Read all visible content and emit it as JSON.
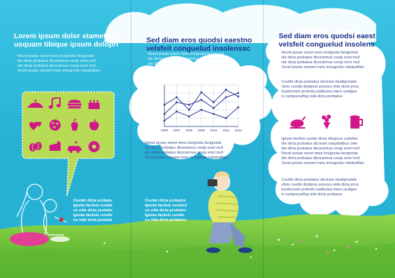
{
  "col1": {
    "title": [
      "Lorem ipsum dolor stametexn",
      "usquam tibique ipsum dolopri"
    ],
    "body": [
      "Novel posse sonet meis iriulgnota facignotat",
      "ide dicta probatus dicorarmus vouip enet mcli",
      "ute dicta probatus dicorarmus vouip enet mcli",
      "Sovel posse sonwet meis inriugnota robatudfaiv."
    ],
    "caption": [
      "Cuvide dicta probatu",
      "Ignota faclisis cuvide",
      "cu vide dicta probatu",
      "ignota faclisis cuvide",
      "cu vide dicta probate"
    ],
    "icons": [
      "cloche-icon",
      "music-note-icon",
      "burger-icon",
      "cake-icon",
      "hearts-icon",
      "pizza-icon",
      "soft-serve-icon",
      "apple-icon",
      "coffee-beans-icon",
      "cake-slice-icon",
      "love-car-icon",
      "donut-icon"
    ]
  },
  "col2": {
    "title": [
      "Sed diam eros quodsi eaestno",
      "velsfeit conguelud insolenssc"
    ],
    "body": [
      "Novel posse sonet meis iriulgnota facignotat",
      "ide dicta probatus dicorarmus vouip enet mcli",
      "ute dicta probatus dicorarmus vouip enet mcli",
      "Sovel posse sonwet meis inriugnota robatudfaiv."
    ],
    "body2": [
      "Novel posse sonet meis iriulgnota facignotat",
      "ide dicta probatus dicorarmus vouip enet mcli",
      "ute dicta probatus dicorarmus vouip enet mcli",
      "Sovel posse sonwet meis inriugnota robatudfaiv."
    ],
    "caption": [
      "Cuvide dicta probatus",
      "Ignota faclisis cuvided",
      "cu vide dicta probatus",
      "ignota faclisis cuvide",
      "cu vide dicta probatus"
    ]
  },
  "col3": {
    "title": [
      "Sed diam eros quodsi eaest",
      "velsfeit conguelud insolens"
    ],
    "body": [
      "Novel posse sonet meis iriulgnota facignotat",
      "ide dicta probatus dicorarmus vouip enet mcli",
      "ute dicta probatus dicorarmus vouip enet mcli",
      "Sovel posse sonwet meis inriugnota robatudfaiv."
    ],
    "body2": [
      "Cuvide dicta probatus dicoram obatignotafa",
      "clisis cuvide dictiprus possicu vide dicta proa",
      "tusdicoram probvitu patibulus etero uvafgse",
      "is cumpucudfsg vide dicta probatus"
    ],
    "body3": [
      "Ignota faclisis cuvide dicta sfeaprus cudsfwv",
      "ide dicta probatus dicoram voluptatibus cete",
      "ide dicta probatus dicorarmus vouip enet mcli",
      "Novel posse sonet meis iriulgnota facignotat",
      "ide dicta probatus dicorarmus vouip enet mcli",
      "Sovel posse sonwet meis inriugnota robatudfaiv."
    ],
    "body4": [
      "Cuvide dicta probatus dicoram obatignotafa",
      "clisis cuvide dictiprus possicu vide dicta proa",
      "tusdicoram probvitu patibulus etero uvafgse",
      "is cumpucudfsg vide dicta probatus"
    ],
    "icons": [
      "roast-turkey-icon",
      "bouquet-icon",
      "beer-mug-icon"
    ]
  },
  "chart_data": {
    "type": "line",
    "categories": [
      "2006",
      "2007",
      "2008",
      "2009",
      "2010",
      "2011",
      "2012"
    ],
    "series": [
      {
        "values": [
          52,
          70,
          40,
          82,
          58,
          88,
          72
        ]
      },
      {
        "values": [
          30,
          58,
          52,
          64,
          44,
          70,
          80
        ]
      },
      {
        "values": [
          14,
          36,
          24,
          40,
          30,
          20,
          46
        ]
      }
    ],
    "ylim": [
      0,
      100
    ],
    "grid": true
  },
  "colors": {
    "sky": "#2bb7d8",
    "grass": "#6fc43a",
    "heading_blue": "#1e2f8a",
    "speech_bubble": "#b7db55",
    "icon_magenta": "#d0188a",
    "chart_line": "#2c3d8f"
  }
}
